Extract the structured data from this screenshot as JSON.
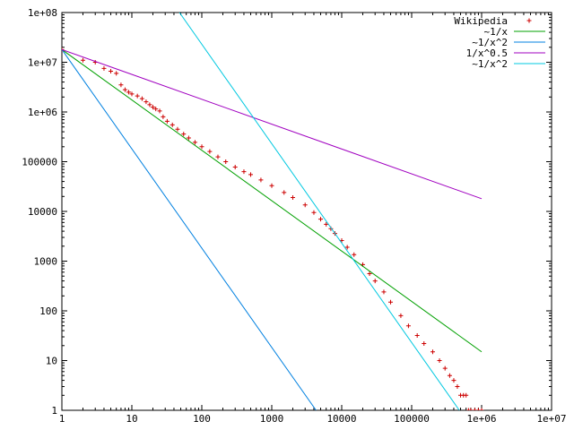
{
  "chart_data": {
    "type": "scatter",
    "title": "",
    "xlabel": "",
    "ylabel": "",
    "x_scale": "log",
    "y_scale": "log",
    "xlim": [
      1,
      10000000
    ],
    "ylim": [
      1,
      100000000
    ],
    "grid": false,
    "legend_position": "top-right",
    "x_tick_labels": [
      "1",
      "10",
      "100",
      "1000",
      "10000",
      "100000",
      "1e+06",
      "1e+07"
    ],
    "y_tick_labels": [
      "1",
      "10",
      "100",
      "1000",
      "10000",
      "100000",
      "1e+06",
      "1e+07",
      "1e+08"
    ],
    "series": [
      {
        "name": "Wikipedia",
        "kind": "points",
        "color": "#cc0000",
        "marker": "plus",
        "points": [
          [
            1,
            18000000
          ],
          [
            2,
            11000000
          ],
          [
            3,
            10000000
          ],
          [
            4,
            7500000
          ],
          [
            5,
            6600000
          ],
          [
            6,
            6000000
          ],
          [
            7,
            3500000
          ],
          [
            8,
            2800000
          ],
          [
            9,
            2500000
          ],
          [
            10,
            2300000
          ],
          [
            12,
            2100000
          ],
          [
            14,
            1850000
          ],
          [
            16,
            1600000
          ],
          [
            18,
            1400000
          ],
          [
            20,
            1250000
          ],
          [
            22,
            1150000
          ],
          [
            25,
            1050000
          ],
          [
            28,
            800000
          ],
          [
            32,
            650000
          ],
          [
            38,
            550000
          ],
          [
            45,
            450000
          ],
          [
            55,
            360000
          ],
          [
            65,
            300000
          ],
          [
            80,
            245000
          ],
          [
            100,
            200000
          ],
          [
            130,
            160000
          ],
          [
            170,
            125000
          ],
          [
            220,
            100000
          ],
          [
            300,
            78000
          ],
          [
            400,
            63000
          ],
          [
            500,
            55000
          ],
          [
            700,
            43000
          ],
          [
            1000,
            33000
          ],
          [
            1500,
            24000
          ],
          [
            2000,
            19000
          ],
          [
            3000,
            13500
          ],
          [
            4000,
            9500
          ],
          [
            5000,
            7000
          ],
          [
            6000,
            5500
          ],
          [
            7000,
            4500
          ],
          [
            8000,
            3600
          ],
          [
            10000,
            2600
          ],
          [
            12000,
            1900
          ],
          [
            15000,
            1350
          ],
          [
            20000,
            850
          ],
          [
            25000,
            560
          ],
          [
            30000,
            400
          ],
          [
            40000,
            240
          ],
          [
            50000,
            150
          ],
          [
            70000,
            80
          ],
          [
            90000,
            50
          ],
          [
            120000,
            32
          ],
          [
            150000,
            22
          ],
          [
            200000,
            15
          ],
          [
            250000,
            10
          ],
          [
            300000,
            7
          ],
          [
            350000,
            5
          ],
          [
            400000,
            4
          ],
          [
            450000,
            3
          ],
          [
            500000,
            2
          ],
          [
            550000,
            2
          ],
          [
            600000,
            2
          ],
          [
            650000,
            1
          ],
          [
            700000,
            1
          ],
          [
            800000,
            1
          ],
          [
            900000,
            1
          ],
          [
            1000000,
            1
          ]
        ]
      },
      {
        "name": "~1/x",
        "kind": "line",
        "color": "#00a000",
        "points": [
          [
            1,
            18000000
          ],
          [
            1000000,
            15
          ]
        ]
      },
      {
        "name": "~1/x^2",
        "kind": "line",
        "color": "#0080e0",
        "points": [
          [
            1,
            18000000
          ],
          [
            4300,
            1
          ]
        ]
      },
      {
        "name": "1/x^0.5",
        "kind": "line",
        "color": "#a000c0",
        "points": [
          [
            1,
            18000000
          ],
          [
            1000000,
            18000
          ]
        ]
      },
      {
        "name": "~1/x^2",
        "kind": "line",
        "color": "#00c8e0",
        "points": [
          [
            48,
            100000000
          ],
          [
            480000,
            1
          ]
        ]
      }
    ]
  }
}
